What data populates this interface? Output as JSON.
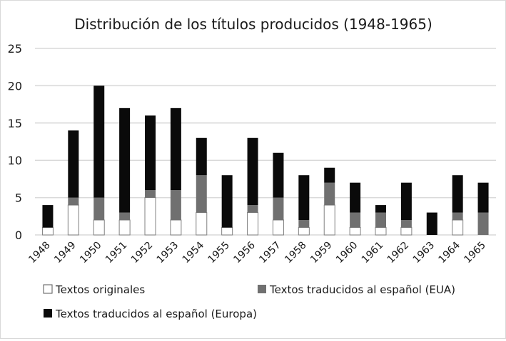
{
  "chart_data": {
    "type": "bar",
    "stacked": true,
    "title": "Distribución de los títulos producidos (1948-1965)",
    "xlabel": "",
    "ylabel": "",
    "categories": [
      "1948",
      "1949",
      "1950",
      "1951",
      "1952",
      "1953",
      "1954",
      "1955",
      "1956",
      "1957",
      "1958",
      "1959",
      "1960",
      "1961",
      "1962",
      "1963",
      "1964",
      "1965"
    ],
    "ylim": [
      0,
      25
    ],
    "yticks": [
      0,
      5,
      10,
      15,
      20,
      25
    ],
    "grid": true,
    "legend_position": "bottom",
    "series": [
      {
        "name": "Textos originales",
        "color": "#ffffff",
        "values": [
          1,
          4,
          2,
          2,
          5,
          2,
          3,
          1,
          3,
          2,
          1,
          4,
          1,
          1,
          1,
          0,
          2,
          0
        ]
      },
      {
        "name": "Textos traducidos al español (EUA)",
        "color": "#707070",
        "values": [
          0,
          1,
          3,
          1,
          1,
          4,
          5,
          0,
          1,
          3,
          1,
          3,
          2,
          2,
          1,
          0,
          1,
          3
        ]
      },
      {
        "name": "Textos traducidos al español (Europa)",
        "color": "#0a0a0a",
        "values": [
          3,
          9,
          15,
          14,
          10,
          11,
          5,
          7,
          9,
          6,
          6,
          2,
          4,
          1,
          5,
          3,
          5,
          4
        ]
      }
    ]
  }
}
